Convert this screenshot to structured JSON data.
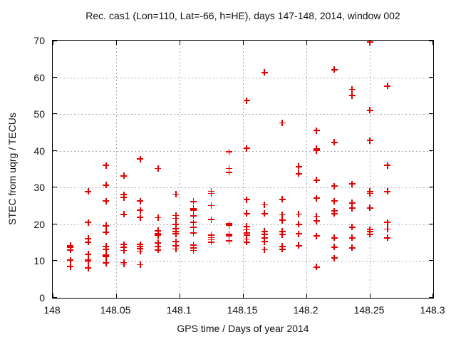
{
  "chart_data": {
    "type": "scatter",
    "title": "Rec. cas1 (Lon=110, Lat=-66, h=HE), days 147-148, 2014, window 002",
    "xlabel": "GPS time / Days of year 2014",
    "ylabel": "STEC from uqrg / TECUs",
    "xlim": [
      148,
      148.3
    ],
    "ylim": [
      0,
      70
    ],
    "xticks": [
      148,
      148.05,
      148.1,
      148.15,
      148.2,
      148.25,
      148.3
    ],
    "xtick_labels": [
      "148",
      "148.05",
      "148.1",
      "148.15",
      "148.2",
      "148.25",
      "148.3"
    ],
    "yticks": [
      0,
      10,
      20,
      30,
      40,
      50,
      60,
      70
    ],
    "ytick_labels": [
      "0",
      "10",
      "20",
      "30",
      "40",
      "50",
      "60",
      "70"
    ],
    "grid": true,
    "legend": "none",
    "marker": "plus",
    "marker_color": "#e60000",
    "series": [
      {
        "x": 148.014,
        "y": [
          14.2,
          13.7,
          13.0,
          10.2,
          8.5
        ]
      },
      {
        "x": 148.028,
        "y": [
          28.9,
          20.5,
          16.1,
          15.2,
          11.9,
          10.3,
          9.8,
          8.1
        ]
      },
      {
        "x": 148.042,
        "y": [
          36.0,
          30.7,
          26.3,
          19.6,
          17.9,
          14.0,
          13.2,
          11.7,
          11.2,
          9.5
        ]
      },
      {
        "x": 148.056,
        "y": [
          33.2,
          28.1,
          27.3,
          22.7,
          14.5,
          13.7,
          12.9,
          9.6,
          9.2
        ]
      },
      {
        "x": 148.069,
        "y": [
          37.8,
          26.3,
          23.8,
          21.9,
          14.5,
          14.0,
          13.4,
          12.7,
          9.0
        ]
      },
      {
        "x": 148.083,
        "y": [
          35.2,
          21.8,
          18.3,
          17.5,
          17.0,
          15.0,
          13.9,
          13.0
        ]
      },
      {
        "x": 148.097,
        "y": [
          28.2,
          22.4,
          21.6,
          20.0,
          18.8,
          18.1,
          17.4,
          15.3,
          14.2,
          13.3
        ]
      },
      {
        "x": 148.111,
        "y": [
          26.2,
          24.3,
          23.8,
          22.3,
          20.5,
          19.2,
          17.6,
          14.4,
          13.5,
          12.9
        ]
      },
      {
        "x": 148.125,
        "y": [
          29.0,
          28.4,
          25.1,
          21.3,
          17.1,
          16.4,
          15.8,
          15.2
        ]
      },
      {
        "x": 148.139,
        "y": [
          39.7,
          35.2,
          34.2,
          20.1,
          19.7,
          17.3,
          16.8,
          15.5
        ]
      },
      {
        "x": 148.153,
        "y": [
          53.7,
          40.7,
          26.7,
          22.9,
          19.4,
          18.5,
          17.6,
          17.0,
          16.0,
          15.2
        ]
      },
      {
        "x": 148.167,
        "y": [
          61.3,
          25.3,
          22.9,
          18.1,
          17.2,
          16.3,
          15.3,
          13.1
        ]
      },
      {
        "x": 148.181,
        "y": [
          47.6,
          26.8,
          22.6,
          21.1,
          18.1,
          17.2,
          14.0,
          13.2
        ]
      },
      {
        "x": 148.194,
        "y": [
          35.7,
          33.8,
          22.8,
          20.0,
          17.4,
          14.2
        ]
      },
      {
        "x": 148.208,
        "y": [
          45.5,
          40.6,
          40.1,
          32.0,
          27.1,
          22.2,
          20.9,
          16.8,
          8.4
        ]
      },
      {
        "x": 148.222,
        "y": [
          62.1,
          42.3,
          30.4,
          26.3,
          23.6,
          22.9,
          16.3,
          13.8,
          10.8
        ]
      },
      {
        "x": 148.236,
        "y": [
          56.7,
          55.0,
          31.0,
          25.8,
          24.4,
          19.2,
          16.3,
          13.6
        ]
      },
      {
        "x": 148.25,
        "y": [
          69.6,
          51.0,
          42.8,
          28.9,
          28.4,
          24.5,
          18.6,
          18.0,
          17.3
        ]
      },
      {
        "x": 148.264,
        "y": [
          57.6,
          36.0,
          28.9,
          20.5,
          18.7,
          16.3
        ]
      }
    ]
  }
}
